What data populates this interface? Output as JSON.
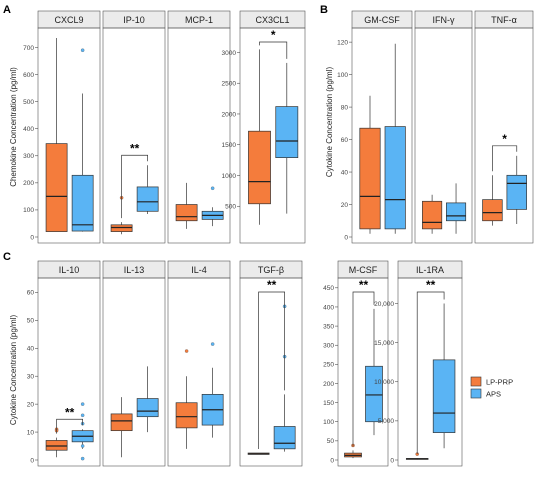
{
  "figure": {
    "panel_letters": [
      "A",
      "B",
      "C"
    ],
    "legend": [
      {
        "label": "LP-PRP",
        "color": "#f47c3c"
      },
      {
        "label": "APS",
        "color": "#5ab4f4"
      }
    ]
  },
  "colors": {
    "lp_prp": "#f47c3c",
    "aps": "#5ab4f4",
    "strip_bg": "#ebebeb",
    "strip_border": "#555555"
  },
  "chart_data": [
    {
      "type": "box",
      "panel": "A",
      "ylabel": "Chemokine Concentration (pg/ml)",
      "facets": [
        {
          "title": "CXCL9",
          "ylim": [
            0,
            750
          ],
          "ticks": [
            0,
            100,
            200,
            300,
            400,
            500,
            600,
            700
          ],
          "series": [
            {
              "name": "LP-PRP",
              "min": 20,
              "q1": 20,
              "median": 150,
              "q3": 345,
              "max": 735,
              "outliers": []
            },
            {
              "name": "APS",
              "min": 20,
              "q1": 22,
              "median": 45,
              "q3": 228,
              "max": 530,
              "outliers": [
                690
              ]
            }
          ],
          "sig": ""
        },
        {
          "title": "IP-10",
          "ylim": [
            0,
            750
          ],
          "ticks": [],
          "series": [
            {
              "name": "LP-PRP",
              "min": 10,
              "q1": 20,
              "median": 35,
              "q3": 45,
              "max": 55,
              "outliers": [
                145
              ]
            },
            {
              "name": "APS",
              "min": 85,
              "q1": 95,
              "median": 130,
              "q3": 185,
              "max": 265,
              "outliers": []
            }
          ],
          "sig": "**"
        },
        {
          "title": "MCP-1",
          "ylim": [
            0,
            750
          ],
          "ticks": [],
          "series": [
            {
              "name": "LP-PRP",
              "min": 30,
              "q1": 60,
              "median": 75,
              "q3": 120,
              "max": 200,
              "outliers": []
            },
            {
              "name": "APS",
              "min": 40,
              "q1": 65,
              "median": 80,
              "q3": 95,
              "max": 110,
              "outliers": [
                180
              ]
            }
          ],
          "sig": ""
        },
        {
          "title": "CX3CL1",
          "ylim": [
            0,
            3300
          ],
          "ticks": [
            500,
            1000,
            1500,
            2000,
            2500,
            3000
          ],
          "series": [
            {
              "name": "LP-PRP",
              "min": 200,
              "q1": 540,
              "median": 900,
              "q3": 1720,
              "max": 3050,
              "outliers": []
            },
            {
              "name": "APS",
              "min": 380,
              "q1": 1290,
              "median": 1560,
              "q3": 2120,
              "max": 2830,
              "outliers": []
            }
          ],
          "sig": "*"
        }
      ]
    },
    {
      "type": "box",
      "panel": "B",
      "ylabel": "Cytokine Concentration (pg/ml)",
      "facets": [
        {
          "title": "GM-CSF",
          "ylim": [
            0,
            125
          ],
          "ticks": [
            0,
            20,
            40,
            60,
            80,
            100,
            120
          ],
          "series": [
            {
              "name": "LP-PRP",
              "min": 2,
              "q1": 5,
              "median": 25,
              "q3": 67,
              "max": 87,
              "outliers": []
            },
            {
              "name": "APS",
              "min": 2,
              "q1": 5,
              "median": 23,
              "q3": 68,
              "max": 119,
              "outliers": []
            }
          ],
          "sig": ""
        },
        {
          "title": "IFN-γ",
          "ylim": [
            0,
            125
          ],
          "ticks": [],
          "series": [
            {
              "name": "LP-PRP",
              "min": 2,
              "q1": 5,
              "median": 9,
              "q3": 22,
              "max": 26,
              "outliers": []
            },
            {
              "name": "APS",
              "min": 2,
              "q1": 10,
              "median": 13,
              "q3": 21,
              "max": 33,
              "outliers": []
            }
          ],
          "sig": ""
        },
        {
          "title": "TNF-α",
          "ylim": [
            0,
            125
          ],
          "ticks": [],
          "series": [
            {
              "name": "LP-PRP",
              "min": 7,
              "q1": 10,
              "median": 15,
              "q3": 23,
              "max": 38,
              "outliers": []
            },
            {
              "name": "APS",
              "min": 8,
              "q1": 17,
              "median": 33,
              "q3": 38,
              "max": 50,
              "outliers": []
            }
          ],
          "sig": "*"
        }
      ]
    },
    {
      "type": "box",
      "panel": "C",
      "ylabel": "Cytokine Concentration (pg/ml)",
      "facets": [
        {
          "title": "IL-10",
          "ylim": [
            0,
            63
          ],
          "ticks": [
            0,
            10,
            20,
            30,
            40,
            50,
            60
          ],
          "series": [
            {
              "name": "LP-PRP",
              "min": 1,
              "q1": 3.5,
              "median": 5,
              "q3": 7,
              "max": 8,
              "outliers": [
                11,
                10.5
              ]
            },
            {
              "name": "APS",
              "min": 4,
              "q1": 6.5,
              "median": 8.5,
              "q3": 10.5,
              "max": 11,
              "outliers": [
                20,
                16,
                13,
                5,
                0.5
              ]
            }
          ],
          "sig": "**"
        },
        {
          "title": "IL-13",
          "ylim": [
            0,
            63
          ],
          "ticks": [],
          "series": [
            {
              "name": "LP-PRP",
              "min": 1,
              "q1": 10.5,
              "median": 14,
              "q3": 16.5,
              "max": 22.5,
              "outliers": []
            },
            {
              "name": "APS",
              "min": 10,
              "q1": 15.5,
              "median": 17.5,
              "q3": 22,
              "max": 33.5,
              "outliers": []
            }
          ],
          "sig": ""
        },
        {
          "title": "IL-4",
          "ylim": [
            0,
            63
          ],
          "ticks": [],
          "series": [
            {
              "name": "LP-PRP",
              "min": 4,
              "q1": 11.5,
              "median": 15.5,
              "q3": 20.5,
              "max": 30,
              "outliers": [
                39
              ]
            },
            {
              "name": "APS",
              "min": 8,
              "q1": 12.5,
              "median": 18,
              "q3": 23.5,
              "max": 33,
              "outliers": [
                41.5
              ]
            }
          ],
          "sig": ""
        },
        {
          "title": "TGF-β",
          "ylim": [
            0,
            63
          ],
          "ticks": [],
          "series": [
            {
              "name": "LP-PRP",
              "min": 2,
              "q1": 2,
              "median": 2.2,
              "q3": 2.5,
              "max": 2.5,
              "outliers": []
            },
            {
              "name": "APS",
              "min": 3,
              "q1": 4,
              "median": 6,
              "q3": 12,
              "max": 23.5,
              "outliers": [
                55,
                37
              ]
            }
          ],
          "sig": "**"
        }
      ]
    },
    {
      "type": "box",
      "panel": "C",
      "ylabel": "",
      "facets": [
        {
          "title": "M-CSF",
          "ylim": [
            0,
            460
          ],
          "ticks": [
            0,
            50,
            100,
            150,
            200,
            250,
            300,
            350,
            400,
            450
          ],
          "series": [
            {
              "name": "LP-PRP",
              "min": 5,
              "q1": 8,
              "median": 12,
              "q3": 18,
              "max": 25,
              "outliers": [
                38
              ]
            },
            {
              "name": "APS",
              "min": 65,
              "q1": 100,
              "median": 170,
              "q3": 245,
              "max": 395,
              "outliers": []
            }
          ],
          "sig": "**"
        }
      ]
    },
    {
      "type": "box",
      "panel": "C",
      "ylabel": "",
      "facets": [
        {
          "title": "IL-1RA",
          "ylim": [
            0,
            22500
          ],
          "ticks": [
            0,
            5000,
            10000,
            15000,
            20000
          ],
          "tick_labels": [
            "0",
            "5,000",
            "10,000",
            "15,000",
            "20,000"
          ],
          "series": [
            {
              "name": "LP-PRP",
              "min": 50,
              "q1": 100,
              "median": 150,
              "q3": 200,
              "max": 250,
              "outliers": [
                750
              ]
            },
            {
              "name": "APS",
              "min": 1500,
              "q1": 3500,
              "median": 6000,
              "q3": 12800,
              "max": 20000,
              "outliers": []
            }
          ],
          "sig": "**"
        }
      ]
    }
  ]
}
